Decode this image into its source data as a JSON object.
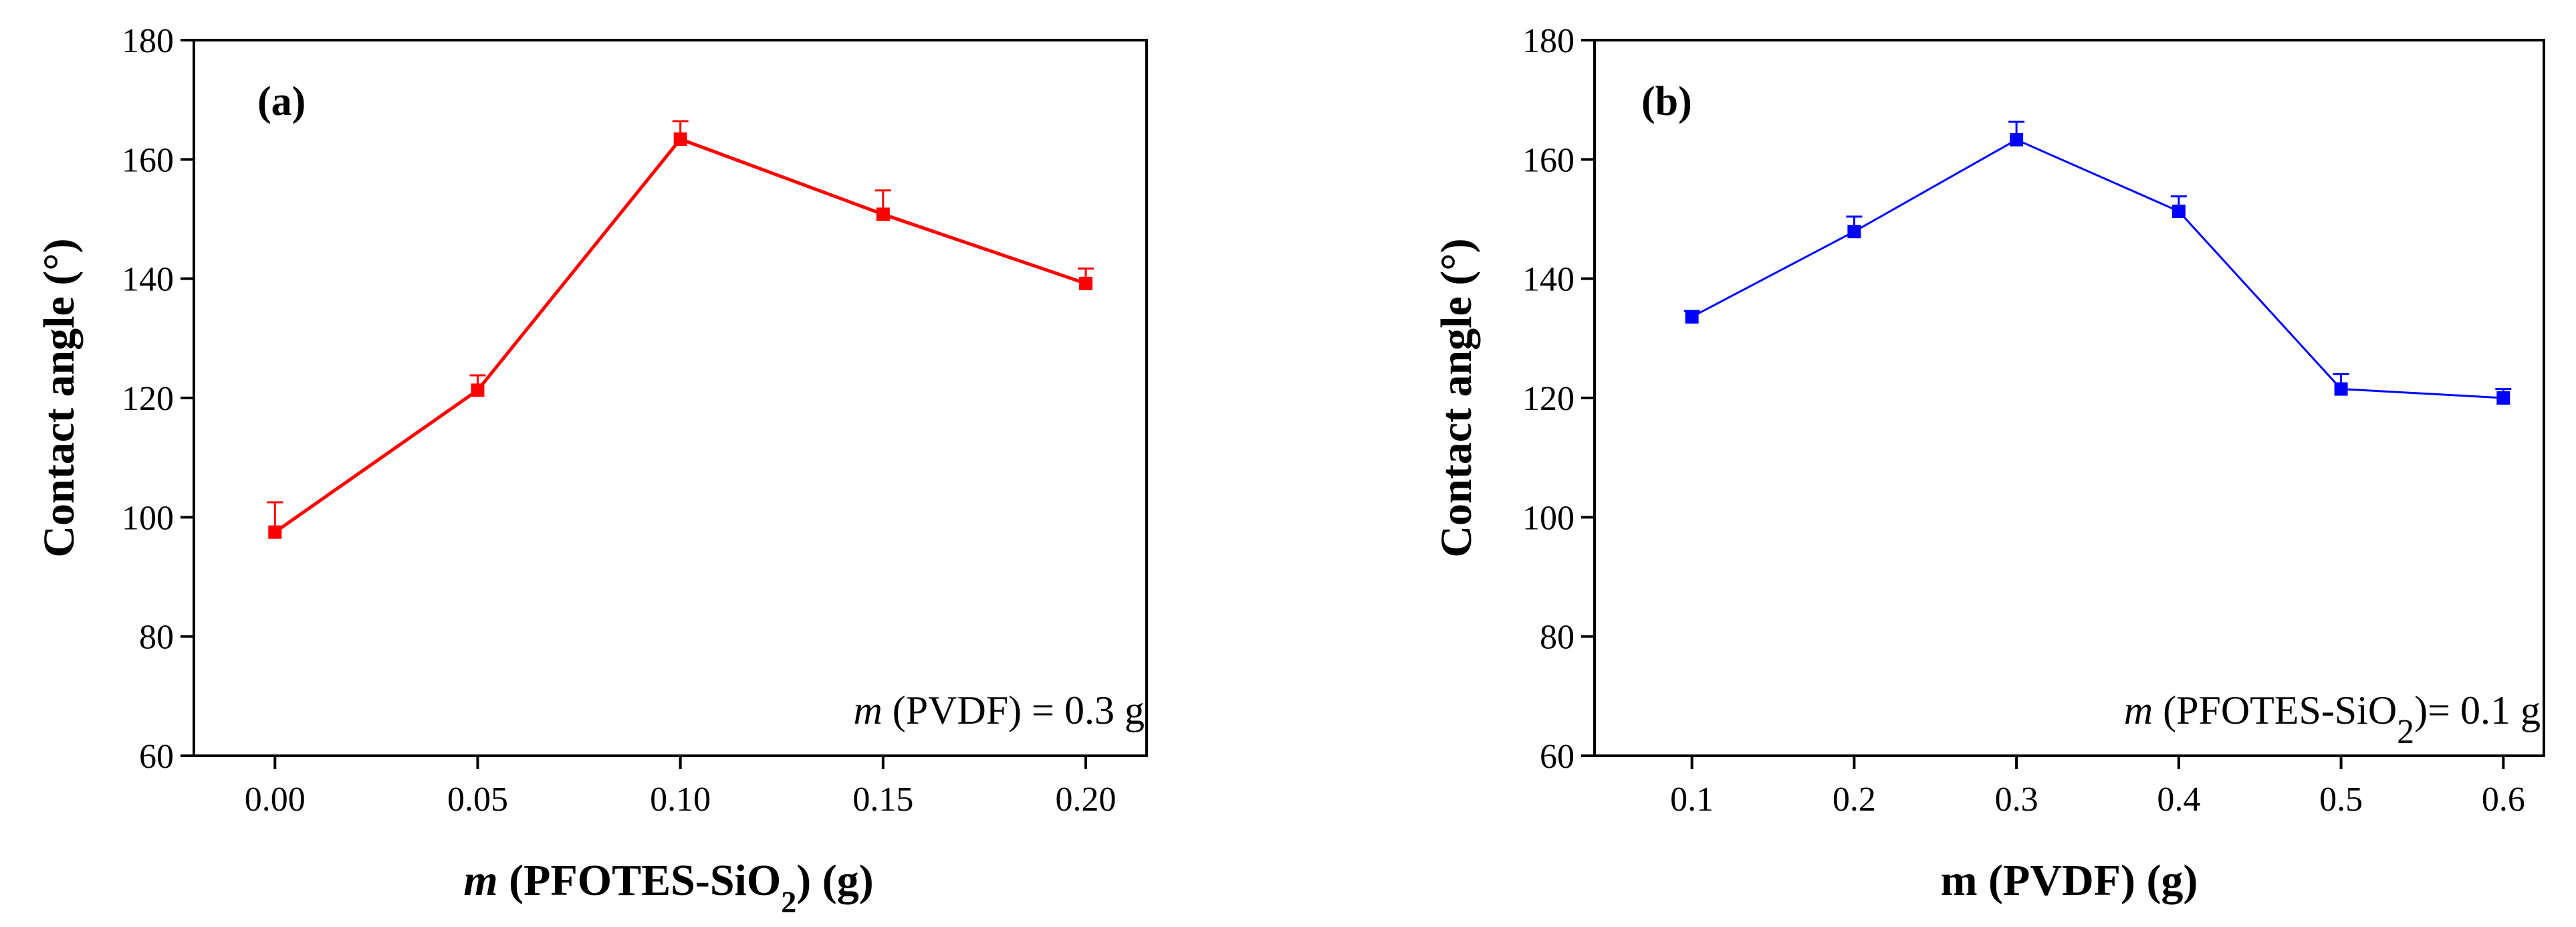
{
  "chart_data": [
    {
      "type": "line",
      "panel_label": "(a)",
      "xlabel": {
        "italic": "m",
        "main": " (PFOTES-SiO",
        "sub": "2",
        "tail": ") (g)"
      },
      "ylabel": "Contact angle (°)",
      "xlim": [
        -0.02,
        0.215
      ],
      "ylim": [
        60,
        180
      ],
      "xticks": [
        "0.00",
        "0.05",
        "0.10",
        "0.15",
        "0.20"
      ],
      "yticks": [
        "60",
        "80",
        "100",
        "120",
        "140",
        "160",
        "180"
      ],
      "color": "#ff0000",
      "series": [
        {
          "name": "Contact angle",
          "x": [
            0.0,
            0.05,
            0.1,
            0.15,
            0.2
          ],
          "y": [
            97.5,
            121.3,
            163.4,
            150.8,
            139.2
          ],
          "err": [
            5.0,
            2.5,
            3.0,
            4.0,
            2.5
          ]
        }
      ],
      "annotation": {
        "italic": "m",
        "main": " (PVDF) = 0.3 g"
      }
    },
    {
      "type": "line",
      "panel_label": "(b)",
      "xlabel": {
        "main": "m (PVDF) (g)"
      },
      "ylabel": "Contact angle (°)",
      "xlim": [
        0.04,
        0.625
      ],
      "ylim": [
        60,
        180
      ],
      "xticks": [
        "0.1",
        "0.2",
        "0.3",
        "0.4",
        "0.5",
        "0.6"
      ],
      "yticks": [
        "60",
        "80",
        "100",
        "120",
        "140",
        "160",
        "180"
      ],
      "color": "#0000ff",
      "series": [
        {
          "name": "Contact angle",
          "x": [
            0.1,
            0.2,
            0.3,
            0.4,
            0.5,
            0.6
          ],
          "y": [
            133.6,
            147.9,
            163.3,
            151.3,
            121.5,
            120.0
          ],
          "err": [
            1.0,
            2.5,
            3.0,
            2.5,
            2.5,
            1.5
          ]
        }
      ],
      "annotation": {
        "italic": "m",
        "main": " (PFOTES-SiO",
        "sub": "2",
        "tail": ")= 0.1 g"
      }
    }
  ]
}
